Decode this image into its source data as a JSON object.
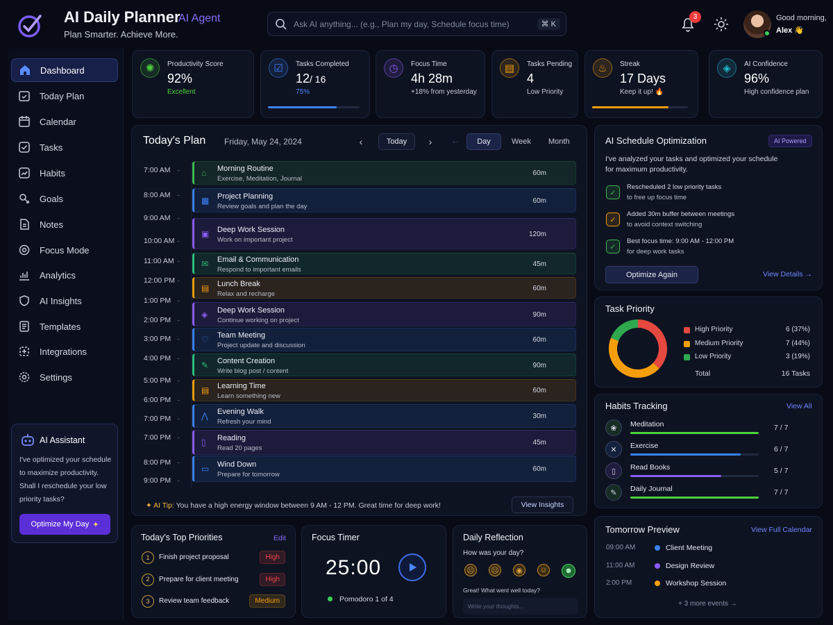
{
  "header": {
    "title": "AI Daily Planner",
    "badge": "AI Agent",
    "subtitle": "Plan Smarter. Achieve More.",
    "search_placeholder": "Ask AI anything... (e.g., Plan my day, Schedule focus time)",
    "search_shortcut": "⌘ K",
    "notifications": "3",
    "greeting": "Good morning,",
    "user": "Alex 👋"
  },
  "sidebar": {
    "items": [
      {
        "label": "Dashboard",
        "icon": "home-icon"
      },
      {
        "label": "Today Plan",
        "icon": "calendar-check-icon"
      },
      {
        "label": "Calendar",
        "icon": "calendar-icon"
      },
      {
        "label": "Tasks",
        "icon": "checkbox-icon"
      },
      {
        "label": "Habits",
        "icon": "chart-icon"
      },
      {
        "label": "Goals",
        "icon": "target-icon"
      },
      {
        "label": "Notes",
        "icon": "note-icon"
      },
      {
        "label": "Focus Mode",
        "icon": "focus-icon"
      },
      {
        "label": "Analytics",
        "icon": "analytics-icon"
      },
      {
        "label": "AI Insights",
        "icon": "shield-icon"
      },
      {
        "label": "Templates",
        "icon": "template-icon"
      },
      {
        "label": "Integrations",
        "icon": "puzzle-icon"
      },
      {
        "label": "Settings",
        "icon": "gear-icon"
      }
    ],
    "assistant": {
      "title": "AI Assistant",
      "body": "I've optimized your schedule to maximize productivity. Shall I reschedule your low priority tasks?",
      "button": "Optimize My Day"
    }
  },
  "stats": [
    {
      "label": "Productivity Score",
      "value": "92%",
      "sub": "Excellent",
      "color": "#4cd13b"
    },
    {
      "label": "Tasks Completed",
      "value": "12",
      "value2": "/ 16",
      "sub": "75%",
      "progress": 0.75,
      "color": "#3b82f6"
    },
    {
      "label": "Focus Time",
      "value": "4h 28m",
      "sub": "+18% from yesterday",
      "color": "#8b5cf6"
    },
    {
      "label": "Tasks Pending",
      "value": "4",
      "sub": "Low Priority",
      "color": "#f59e0b"
    },
    {
      "label": "Streak",
      "value": "17 Days",
      "sub": "Keep it up! 🔥",
      "progress": 0.8,
      "color": "#f59e0b"
    },
    {
      "label": "AI Confidence",
      "value": "96%",
      "sub": "High confidence plan",
      "color": "#22b8cf"
    }
  ],
  "plan": {
    "title": "Today's Plan",
    "date": "Friday, May 24, 2024",
    "today": "Today",
    "views": [
      "Day",
      "Week",
      "Month"
    ],
    "times": [
      "7:00 AM",
      "8:00 AM",
      "9:00 AM",
      "10:00 AM",
      "11:00 AM",
      "12:00 PM",
      "1:00 PM",
      "2:00 PM",
      "3:00 PM",
      "4:00 PM",
      "5:00 PM",
      "6:00 PM",
      "7:00 PM",
      "7:00 PM",
      "8:00 PM",
      "9:00 PM"
    ],
    "items": [
      {
        "title": "Morning Routine",
        "sub": "Exercise, Meditation, Journal",
        "dur": "60m",
        "color": "#3fb950",
        "done": true
      },
      {
        "title": "Project Planning",
        "sub": "Review goals and plan the day",
        "dur": "60m",
        "color": "#3b82f6",
        "done": true
      },
      {
        "title": "Deep Work Session",
        "sub": "Work on important project",
        "dur": "120m",
        "color": "#8b5cf6",
        "done": true
      },
      {
        "title": "Email & Communication",
        "sub": "Respond to important emails",
        "dur": "45m",
        "color": "#2dbf7a",
        "done": true
      },
      {
        "title": "Lunch Break",
        "sub": "Relax and recharge",
        "dur": "60m",
        "color": "#f59e0b",
        "done": true
      },
      {
        "title": "Deep Work Session",
        "sub": "Continue working on project",
        "dur": "90m",
        "color": "#8b5cf6",
        "done": true
      },
      {
        "title": "Team Meeting",
        "sub": "Project update and discussion",
        "dur": "60m",
        "color": "#3b82f6",
        "done": true
      },
      {
        "title": "Content Creation",
        "sub": "Write blog post / content",
        "dur": "90m",
        "color": "#2dbf7a",
        "done": false
      },
      {
        "title": "Learning Time",
        "sub": "Learn something new",
        "dur": "60m",
        "color": "#f59e0b",
        "done": false
      },
      {
        "title": "Evening Walk",
        "sub": "Refresh your mind",
        "dur": "30m",
        "color": "#3b82f6",
        "done": true
      },
      {
        "title": "Reading",
        "sub": "Read 20 pages",
        "dur": "45m",
        "color": "#8b5cf6",
        "done": false
      },
      {
        "title": "Wind Down",
        "sub": "Prepare for tomorrow",
        "dur": "60m",
        "color": "#3b82f6",
        "done": false
      }
    ],
    "tip_label": "AI Tip:",
    "tip": "You have a high energy window between 9 AM - 12 PM. Great time for deep work!",
    "tip_button": "View Insights"
  },
  "optimization": {
    "title": "AI Schedule Optimization",
    "badge": "AI Powered",
    "intro": "I've analyzed your tasks and optimized your schedule for maximum productivity.",
    "items": [
      {
        "l1": "Rescheduled 2 low priority tasks",
        "l2": "to free up focus time",
        "color": "#3fb950"
      },
      {
        "l1": "Added 30m buffer between meetings",
        "l2": "to avoid context switching",
        "color": "#f59e0b"
      },
      {
        "l1": "Best focus time: 9:00 AM - 12:00 PM",
        "l2": "for deep work tasks",
        "color": "#3fb950"
      }
    ],
    "button": "Optimize Again",
    "link": "View Details →"
  },
  "priority": {
    "title": "Task Priority",
    "rows": [
      {
        "label": "High Priority",
        "value": "6 (37%)",
        "color": "#e5483f",
        "pct": 37
      },
      {
        "label": "Medium Priority",
        "value": "7 (44%)",
        "color": "#f59e0b",
        "pct": 44
      },
      {
        "label": "Low Priority",
        "value": "3 (19%)",
        "color": "#2fa84f",
        "pct": 19
      }
    ],
    "total_label": "Total",
    "total": "16 Tasks"
  },
  "habits": {
    "title": "Habits Tracking",
    "link": "View All",
    "items": [
      {
        "name": "Meditation",
        "value": "7 / 7",
        "progress": 1,
        "color": "#4cd13b",
        "done": true
      },
      {
        "name": "Exercise",
        "value": "6 / 7",
        "progress": 0.86,
        "color": "#3b82f6",
        "done": true
      },
      {
        "name": "Read Books",
        "value": "5 / 7",
        "progress": 0.71,
        "color": "#8b5cf6",
        "done": false
      },
      {
        "name": "Daily Journal",
        "value": "7 / 7",
        "progress": 1,
        "color": "#4cd13b",
        "done": true
      }
    ]
  },
  "priorities": {
    "title": "Today's Top Priorities",
    "link": "Edit",
    "items": [
      {
        "n": "1",
        "text": "Finish project proposal",
        "tag": "High",
        "tagcolor": "#ef4444"
      },
      {
        "n": "2",
        "text": "Prepare for client meeting",
        "tag": "High",
        "tagcolor": "#ef4444"
      },
      {
        "n": "3",
        "text": "Review team feedback",
        "tag": "Medium",
        "tagcolor": "#f59e0b"
      }
    ]
  },
  "timer": {
    "title": "Focus Timer",
    "time": "25:00",
    "sub": "Pomodoro 1 of 4"
  },
  "reflection": {
    "title": "Daily Reflection",
    "question": "How was your day?",
    "prompt": "Great! What went well today?",
    "placeholder": "Write your thoughts..."
  },
  "tomorrow": {
    "title": "Tomorrow Preview",
    "link": "View Full Calendar",
    "events": [
      {
        "time": "09:00 AM",
        "name": "Client Meeting",
        "color": "#3b82f6"
      },
      {
        "time": "11:00 AM",
        "name": "Design Review",
        "color": "#8b5cf6"
      },
      {
        "time": "2:00 PM",
        "name": "Workshop Session",
        "color": "#f59e0b"
      }
    ],
    "more": "+ 3 more events →"
  }
}
